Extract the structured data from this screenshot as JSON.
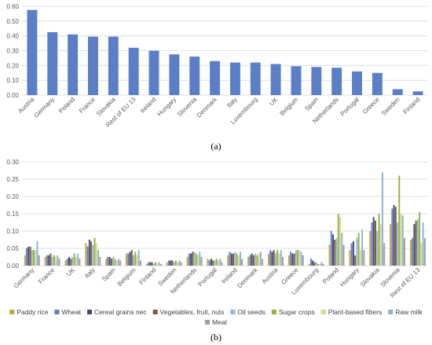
{
  "chart_data": [
    {
      "type": "bar",
      "panel_label": "(a)",
      "categories": [
        "Austria",
        "Germany",
        "Poland",
        "France",
        "Slovakia",
        "Rest of EU 13",
        "Ireland",
        "Hungary",
        "Slovenia",
        "Denmark",
        "Italy",
        "Luxembourg",
        "UK",
        "Belgium",
        "Spain",
        "Netherlands",
        "Portugal",
        "Greece",
        "Sweden",
        "Finland"
      ],
      "values": [
        0.575,
        0.425,
        0.41,
        0.395,
        0.395,
        0.32,
        0.3,
        0.275,
        0.26,
        0.23,
        0.22,
        0.22,
        0.21,
        0.195,
        0.19,
        0.185,
        0.16,
        0.15,
        0.04,
        0.025
      ],
      "yticks": [
        "0.00",
        "0.10",
        "0.20",
        "0.30",
        "0.40",
        "0.50",
        "0.60"
      ],
      "ylim": [
        0,
        0.6
      ],
      "grid": true,
      "color": "#5b7fc6"
    },
    {
      "type": "bar",
      "panel_label": "(b)",
      "categories": [
        "Germany",
        "France",
        "UK",
        "Italy",
        "Spain",
        "Belgium",
        "Finland",
        "Sweden",
        "Netherlands",
        "Portugal",
        "Ireland",
        "Denmark",
        "Austria",
        "Greece",
        "Luxembourg",
        "Poland",
        "Hungary",
        "Slovakia",
        "Slovenia",
        "Rest of EU 13"
      ],
      "yticks": [
        "0.00",
        "0.05",
        "0.10",
        "0.15",
        "0.20",
        "0.25",
        "0.30"
      ],
      "ylim": [
        0,
        0.3
      ],
      "grid": true,
      "legend_position": "bottom",
      "series": [
        {
          "name": "Paddy rice",
          "color": "#c9a23a",
          "values": [
            0.03,
            0.025,
            0.015,
            0.065,
            0.02,
            0.035,
            0.005,
            0.01,
            0.025,
            0.02,
            0.03,
            0.025,
            0.035,
            0.03,
            0.005,
            0.06,
            0.045,
            0.1,
            0.12,
            0.075
          ]
        },
        {
          "name": "Wheat",
          "color": "#5b7fc6",
          "values": [
            0.05,
            0.03,
            0.02,
            0.055,
            0.025,
            0.035,
            0.01,
            0.015,
            0.035,
            0.015,
            0.04,
            0.03,
            0.045,
            0.04,
            0.02,
            0.1,
            0.065,
            0.125,
            0.165,
            0.08
          ]
        },
        {
          "name": "Cereal grains nec",
          "color": "#41487a",
          "values": [
            0.055,
            0.03,
            0.025,
            0.075,
            0.025,
            0.04,
            0.01,
            0.015,
            0.035,
            0.02,
            0.035,
            0.035,
            0.04,
            0.035,
            0.015,
            0.09,
            0.07,
            0.14,
            0.175,
            0.12
          ]
        },
        {
          "name": "Vegetables, fruit, nuts",
          "color": "#7a5c2e",
          "values": [
            0.055,
            0.035,
            0.02,
            0.07,
            0.02,
            0.045,
            0.01,
            0.015,
            0.04,
            0.015,
            0.035,
            0.03,
            0.045,
            0.035,
            0.01,
            0.075,
            0.03,
            0.13,
            0.17,
            0.13
          ]
        },
        {
          "name": "Oil seeds",
          "color": "#9db4db",
          "values": [
            0.045,
            0.025,
            0.025,
            0.06,
            0.025,
            0.03,
            0.005,
            0.01,
            0.04,
            0.015,
            0.04,
            0.035,
            0.035,
            0.045,
            0.01,
            0.08,
            0.08,
            0.1,
            0.125,
            0.135
          ]
        },
        {
          "name": "Sugar crops",
          "color": "#8fb33e",
          "values": [
            0.045,
            0.03,
            0.035,
            0.08,
            0.02,
            0.04,
            0.01,
            0.015,
            0.035,
            0.02,
            0.035,
            0.03,
            0.045,
            0.045,
            0.005,
            0.15,
            0.095,
            0.15,
            0.26,
            0.155
          ]
        },
        {
          "name": "Plant-based fibers",
          "color": "#d9d88f",
          "values": [
            0.045,
            0.025,
            0.025,
            0.065,
            0.015,
            0.03,
            0.005,
            0.01,
            0.03,
            0.015,
            0.03,
            0.035,
            0.035,
            0.045,
            0.005,
            0.14,
            0.045,
            0.12,
            0.15,
            0.065
          ]
        },
        {
          "name": "Raw milk",
          "color": "#8cb2d8",
          "values": [
            0.07,
            0.03,
            0.035,
            0.045,
            0.02,
            0.045,
            0.01,
            0.015,
            0.04,
            0.02,
            0.04,
            0.04,
            0.045,
            0.04,
            0.01,
            0.095,
            0.105,
            0.27,
            0.145,
            0.125
          ]
        },
        {
          "name": "Meat",
          "color": "#9e9e9e",
          "values": [
            0.03,
            0.02,
            0.02,
            0.025,
            0.015,
            0.015,
            0.005,
            0.01,
            0.025,
            0.01,
            0.02,
            0.02,
            0.025,
            0.03,
            0.005,
            0.06,
            0.045,
            0.065,
            0.08,
            0.08
          ]
        }
      ]
    }
  ]
}
